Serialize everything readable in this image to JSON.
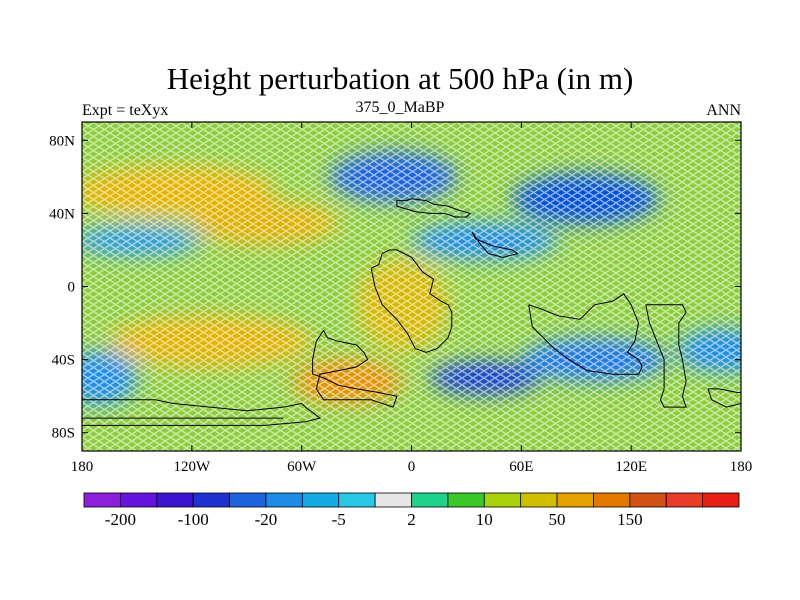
{
  "title": "Height perturbation at 500 hPa (in m)",
  "left_subtitle": "Expt = teXyx",
  "center_subtitle": "375_0_MaBP",
  "right_subtitle": "ANN",
  "map": {
    "projection": "cylindrical equidistant",
    "lon_range": [
      -180,
      180
    ],
    "lat_range": [
      -90,
      90
    ],
    "x_ticks": [
      {
        "value": -180,
        "label": "180"
      },
      {
        "value": -120,
        "label": "120W"
      },
      {
        "value": -60,
        "label": "60W"
      },
      {
        "value": 0,
        "label": "0"
      },
      {
        "value": 60,
        "label": "60E"
      },
      {
        "value": 120,
        "label": "120E"
      },
      {
        "value": 180,
        "label": "180"
      }
    ],
    "y_ticks": [
      {
        "value": 80,
        "label": "80N"
      },
      {
        "value": 40,
        "label": "40N"
      },
      {
        "value": 0,
        "label": "0"
      },
      {
        "value": -40,
        "label": "40S"
      },
      {
        "value": -80,
        "label": "80S"
      }
    ],
    "background_color": "#8ccd3c",
    "regions": [
      {
        "name": "high-north-pacific",
        "lon": -130,
        "lat": 52,
        "rx_deg": 55,
        "ry_deg": 14,
        "color": "#e6b400"
      },
      {
        "name": "high-north-atlantic",
        "lon": -80,
        "lat": 35,
        "rx_deg": 40,
        "ry_deg": 12,
        "color": "#e0b000"
      },
      {
        "name": "high-south-pacific",
        "lon": -110,
        "lat": -30,
        "rx_deg": 55,
        "ry_deg": 14,
        "color": "#e3b200"
      },
      {
        "name": "high-south-atlantic",
        "lon": -35,
        "lat": -52,
        "rx_deg": 30,
        "ry_deg": 12,
        "color": "#e89000"
      },
      {
        "name": "high-africa",
        "lon": -5,
        "lat": -10,
        "rx_deg": 25,
        "ry_deg": 25,
        "color": "#d6b800"
      },
      {
        "name": "low-north-america",
        "lon": -10,
        "lat": 60,
        "rx_deg": 35,
        "ry_deg": 14,
        "color": "#1e64dc"
      },
      {
        "name": "low-asia",
        "lon": 95,
        "lat": 48,
        "rx_deg": 40,
        "ry_deg": 14,
        "color": "#0050d8"
      },
      {
        "name": "low-north-east",
        "lon": 40,
        "lat": 25,
        "rx_deg": 40,
        "ry_deg": 10,
        "color": "#1e8ce6"
      },
      {
        "name": "low-south-indian",
        "lon": 40,
        "lat": -50,
        "rx_deg": 30,
        "ry_deg": 9,
        "color": "#0a3cd2"
      },
      {
        "name": "low-south-east",
        "lon": 100,
        "lat": -40,
        "rx_deg": 40,
        "ry_deg": 12,
        "color": "#1e78e6"
      },
      {
        "name": "low-east-pacific",
        "lon": 170,
        "lat": -35,
        "rx_deg": 25,
        "ry_deg": 12,
        "color": "#1e8ce6"
      },
      {
        "name": "low-south-west",
        "lon": -170,
        "lat": -50,
        "rx_deg": 20,
        "ry_deg": 15,
        "color": "#1e8ce6"
      },
      {
        "name": "low-west-band",
        "lon": -150,
        "lat": 25,
        "rx_deg": 35,
        "ry_deg": 8,
        "color": "#2898e8"
      }
    ],
    "coastlines": [
      [
        [
          -8,
          44
        ],
        [
          -8,
          47
        ],
        [
          -3,
          47
        ],
        [
          0,
          48
        ],
        [
          8,
          47
        ],
        [
          12,
          45
        ],
        [
          20,
          44
        ],
        [
          25,
          42
        ],
        [
          32,
          40
        ],
        [
          30,
          38
        ],
        [
          24,
          38
        ],
        [
          18,
          40
        ],
        [
          10,
          40
        ],
        [
          2,
          41
        ],
        [
          -8,
          44
        ]
      ],
      [
        [
          33,
          30
        ],
        [
          35,
          26
        ],
        [
          40,
          24
        ],
        [
          45,
          22
        ],
        [
          55,
          20
        ],
        [
          58,
          18
        ],
        [
          50,
          16
        ],
        [
          42,
          18
        ],
        [
          37,
          24
        ],
        [
          33,
          30
        ]
      ],
      [
        [
          -22,
          10
        ],
        [
          -18,
          12
        ],
        [
          -16,
          18
        ],
        [
          -12,
          20
        ],
        [
          -8,
          20
        ],
        [
          0,
          16
        ],
        [
          6,
          8
        ],
        [
          12,
          4
        ],
        [
          10,
          -4
        ],
        [
          16,
          -8
        ],
        [
          20,
          -10
        ],
        [
          22,
          -14
        ],
        [
          22,
          -22
        ],
        [
          20,
          -28
        ],
        [
          14,
          -34
        ],
        [
          8,
          -36
        ],
        [
          2,
          -34
        ],
        [
          -2,
          -26
        ],
        [
          -8,
          -18
        ],
        [
          -16,
          -10
        ],
        [
          -20,
          0
        ],
        [
          -22,
          10
        ]
      ],
      [
        [
          -48,
          -24
        ],
        [
          -46,
          -28
        ],
        [
          -40,
          -30
        ],
        [
          -30,
          -32
        ],
        [
          -26,
          -36
        ],
        [
          -24,
          -40
        ],
        [
          -30,
          -44
        ],
        [
          -40,
          -46
        ],
        [
          -50,
          -48
        ],
        [
          -52,
          -56
        ],
        [
          -48,
          -62
        ],
        [
          -38,
          -62
        ],
        [
          -22,
          -62
        ],
        [
          -10,
          -66
        ],
        [
          -8,
          -60
        ],
        [
          -18,
          -58
        ],
        [
          -30,
          -56
        ],
        [
          -40,
          -54
        ],
        [
          -48,
          -50
        ],
        [
          -54,
          -48
        ],
        [
          -54,
          -40
        ],
        [
          -52,
          -30
        ],
        [
          -48,
          -24
        ]
      ],
      [
        [
          64,
          -10
        ],
        [
          70,
          -12
        ],
        [
          80,
          -16
        ],
        [
          92,
          -18
        ],
        [
          100,
          -10
        ],
        [
          110,
          -8
        ],
        [
          116,
          -4
        ],
        [
          120,
          -10
        ],
        [
          124,
          -20
        ],
        [
          122,
          -30
        ],
        [
          118,
          -36
        ],
        [
          124,
          -40
        ],
        [
          126,
          -44
        ],
        [
          124,
          -48
        ],
        [
          110,
          -48
        ],
        [
          96,
          -46
        ],
        [
          86,
          -40
        ],
        [
          78,
          -34
        ],
        [
          72,
          -28
        ],
        [
          66,
          -22
        ],
        [
          64,
          -10
        ]
      ],
      [
        [
          128,
          -10
        ],
        [
          138,
          -10
        ],
        [
          148,
          -10
        ],
        [
          150,
          -14
        ],
        [
          146,
          -20
        ],
        [
          146,
          -32
        ],
        [
          148,
          -40
        ],
        [
          150,
          -52
        ],
        [
          148,
          -60
        ],
        [
          150,
          -66
        ],
        [
          138,
          -66
        ],
        [
          136,
          -62
        ],
        [
          138,
          -56
        ],
        [
          138,
          -40
        ],
        [
          134,
          -30
        ],
        [
          130,
          -20
        ],
        [
          128,
          -10
        ]
      ],
      [
        [
          162,
          -56
        ],
        [
          168,
          -56
        ],
        [
          178,
          -58
        ],
        [
          180,
          -58
        ],
        [
          180,
          -64
        ],
        [
          172,
          -66
        ],
        [
          164,
          -62
        ],
        [
          162,
          -56
        ]
      ],
      [
        [
          -180,
          -62
        ],
        [
          -160,
          -62
        ],
        [
          -140,
          -62
        ],
        [
          -130,
          -64
        ],
        [
          -110,
          -66
        ],
        [
          -90,
          -68
        ],
        [
          -70,
          -66
        ],
        [
          -60,
          -64
        ],
        [
          -58,
          -66
        ],
        [
          -50,
          -72
        ],
        [
          -58,
          -74
        ],
        [
          -80,
          -76
        ],
        [
          -110,
          -76
        ],
        [
          -140,
          -76
        ],
        [
          -170,
          -76
        ],
        [
          -180,
          -76
        ]
      ],
      [
        [
          -180,
          -72
        ],
        [
          -150,
          -72
        ],
        [
          -110,
          -72
        ],
        [
          -70,
          -72
        ]
      ]
    ]
  },
  "colorbar": {
    "colors": [
      "#8c1edc",
      "#6414dc",
      "#3c14d2",
      "#1e32d2",
      "#1e64dc",
      "#1e8ce6",
      "#14aae6",
      "#28c8e6",
      "#e6e6e6",
      "#1ed28c",
      "#3cc828",
      "#aad20a",
      "#d2be00",
      "#e6a000",
      "#e67800",
      "#d25014",
      "#e63c28",
      "#e61e14"
    ],
    "labels": [
      {
        "boundary": 1,
        "text": "-200"
      },
      {
        "boundary": 3,
        "text": "-100"
      },
      {
        "boundary": 5,
        "text": "-20"
      },
      {
        "boundary": 7,
        "text": "-5"
      },
      {
        "boundary": 9,
        "text": "2"
      },
      {
        "boundary": 11,
        "text": "10"
      },
      {
        "boundary": 13,
        "text": "50"
      },
      {
        "boundary": 15,
        "text": "150"
      }
    ]
  }
}
